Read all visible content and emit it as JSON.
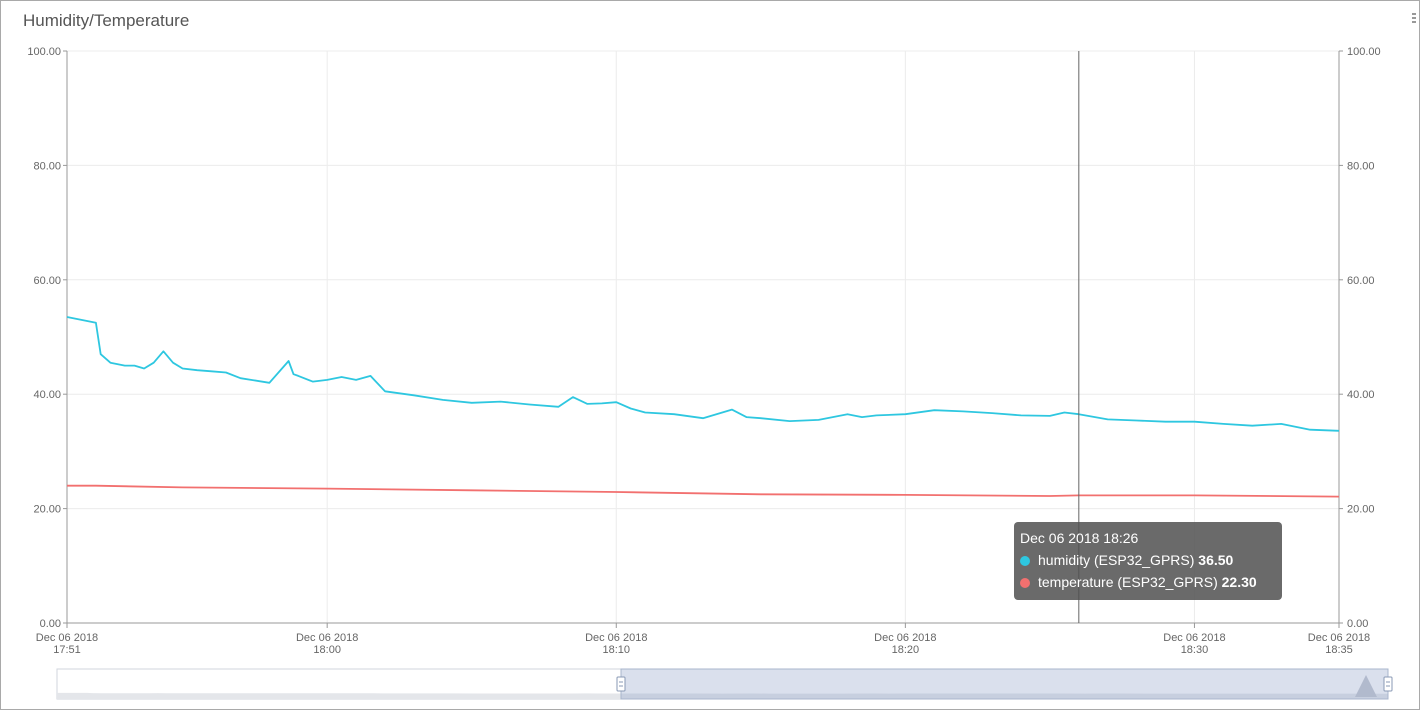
{
  "panel": {
    "title": "Humidity/Temperature"
  },
  "chart_data": {
    "type": "line",
    "title": "Humidity/Temperature",
    "ylim": [
      0,
      100
    ],
    "y_ticks": [
      "0.00",
      "20.00",
      "40.00",
      "60.00",
      "80.00",
      "100.00"
    ],
    "x_ticks": [
      {
        "date": "Dec 06 2018",
        "time": "17:51"
      },
      {
        "date": "Dec 06 2018",
        "time": "18:00"
      },
      {
        "date": "Dec 06 2018",
        "time": "18:10"
      },
      {
        "date": "Dec 06 2018",
        "time": "18:20"
      },
      {
        "date": "Dec 06 2018",
        "time": "18:30"
      },
      {
        "date": "Dec 06 2018",
        "time": "18:35"
      }
    ],
    "x_range": [
      "17:51",
      "18:35"
    ],
    "grid": true,
    "series": [
      {
        "name": "humidity (ESP32_GPRS)",
        "color": "#2ec7e0",
        "x": [
          "17:51",
          "17:52",
          "17:52:10",
          "17:52:30",
          "17:53",
          "17:53:20",
          "17:53:40",
          "17:54",
          "17:54:20",
          "17:54:40",
          "17:55",
          "17:55:30",
          "17:56",
          "17:56:30",
          "17:57",
          "17:58",
          "17:58:40",
          "17:58:50",
          "17:59",
          "17:59:30",
          "18:00",
          "18:00:30",
          "18:01",
          "18:01:30",
          "18:02",
          "18:03",
          "18:04",
          "18:05",
          "18:06",
          "18:07",
          "18:08",
          "18:08:30",
          "18:09",
          "18:09:30",
          "18:10",
          "18:10:30",
          "18:11",
          "18:12",
          "18:13",
          "18:14",
          "18:14:30",
          "18:15",
          "18:16",
          "18:17",
          "18:18",
          "18:18:30",
          "18:19",
          "18:20",
          "18:21",
          "18:22",
          "18:23",
          "18:24",
          "18:25",
          "18:25:30",
          "18:26",
          "18:27",
          "18:28",
          "18:29",
          "18:30",
          "18:31",
          "18:32",
          "18:33",
          "18:34",
          "18:35"
        ],
        "y": [
          53.5,
          52.5,
          47,
          45.5,
          45,
          45,
          44.5,
          45.5,
          47.5,
          45.5,
          44.5,
          44.2,
          44,
          43.8,
          42.8,
          42,
          45.8,
          43.5,
          43.2,
          42.2,
          42.5,
          43,
          42.5,
          43.2,
          40.5,
          39.8,
          39,
          38.5,
          38.7,
          38.2,
          37.8,
          39.5,
          38.3,
          38.4,
          38.6,
          37.5,
          36.8,
          36.5,
          35.8,
          37.3,
          36,
          35.8,
          35.3,
          35.5,
          36.5,
          36,
          36.3,
          36.5,
          37.2,
          37,
          36.7,
          36.3,
          36.2,
          36.8,
          36.5,
          35.6,
          35.4,
          35.2,
          35.2,
          34.8,
          34.5,
          34.8,
          33.8,
          33.6
        ]
      },
      {
        "name": "temperature (ESP32_GPRS)",
        "color": "#f2706f",
        "x": [
          "17:51",
          "17:52",
          "17:55",
          "18:00",
          "18:05",
          "18:10",
          "18:15",
          "18:20",
          "18:25",
          "18:26",
          "18:30",
          "18:35"
        ],
        "y": [
          24,
          24,
          23.7,
          23.5,
          23.2,
          22.9,
          22.5,
          22.4,
          22.2,
          22.3,
          22.3,
          22.1
        ]
      }
    ],
    "tooltip": {
      "time": "Dec 06 2018 18:26",
      "rows": [
        {
          "label": "humidity (ESP32_GPRS)",
          "value": "36.50",
          "color": "#2ec7e0"
        },
        {
          "label": "temperature (ESP32_GPRS)",
          "value": "22.30",
          "color": "#f2706f"
        }
      ]
    },
    "crosshair_time": "18:26"
  }
}
